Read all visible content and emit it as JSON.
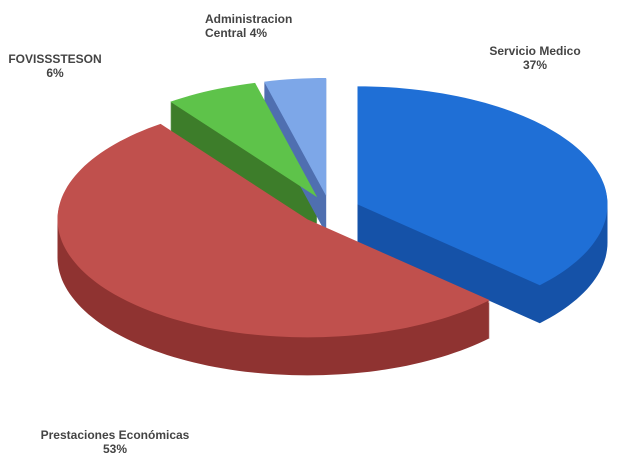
{
  "chart_data": {
    "type": "pie",
    "categories": [
      "Servicio Medico",
      "Prestaciones Económicas",
      "FOVISSSTESON",
      "Administracion Central"
    ],
    "values": [
      37,
      53,
      6,
      4
    ],
    "value_labels": [
      "37%",
      "53%",
      "6%",
      "4%"
    ],
    "colors": [
      "#1f6fd6",
      "#c0504d",
      "#5ec34a",
      "#7da7e8"
    ],
    "side_colors": [
      "#1552a8",
      "#8f3331",
      "#3d7d2a",
      "#4f6fb0"
    ]
  }
}
